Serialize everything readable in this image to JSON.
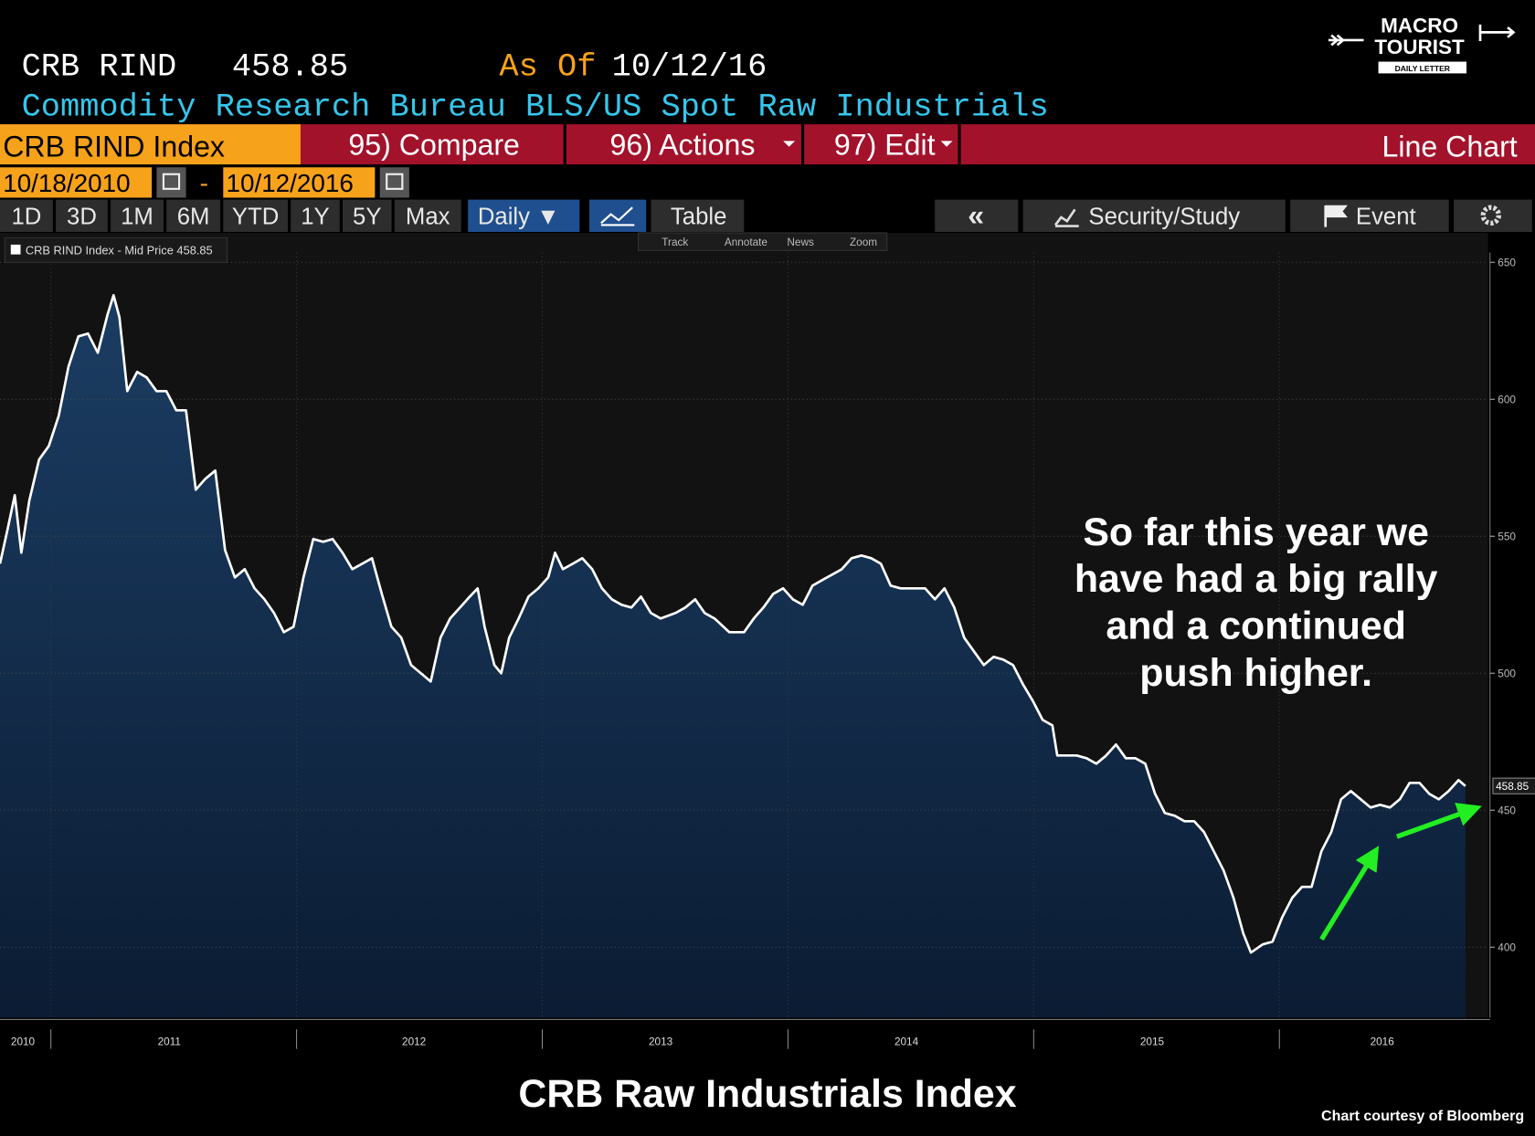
{
  "header": {
    "ticker": "CRB RIND",
    "price": "458.85",
    "as_of": "As Of",
    "date": "10/12/16",
    "description": "Commodity Research Bureau BLS/US Spot Raw Industrials"
  },
  "logo": {
    "line1": "MACRO",
    "line2": "TOURIST",
    "line3": "DAILY LETTER"
  },
  "menu": {
    "security": "CRB RIND Index",
    "compare": "95) Compare",
    "actions": "96) Actions",
    "edit": "97) Edit",
    "view": "Line Chart"
  },
  "range": {
    "start": "10/18/2010",
    "dash": "-",
    "end": "10/12/2016"
  },
  "periods": [
    "1D",
    "3D",
    "1M",
    "6M",
    "YTD",
    "1Y",
    "5Y",
    "Max"
  ],
  "toolbar": {
    "frequency": "Daily ▼",
    "table": "Table",
    "collapse": "«",
    "study": "Security/Study",
    "event": "Event"
  },
  "tools": [
    "Track",
    "Annotate",
    "News",
    "Zoom"
  ],
  "footer": {
    "title": "CRB Raw Industrials Index",
    "credit": "Chart courtesy of Bloomberg"
  },
  "chart_data": {
    "type": "area",
    "annotation": [
      "So far this year we",
      "have had a big rally",
      "and a continued",
      "push higher."
    ],
    "xlim": [
      2010.793,
      2016.849
    ],
    "ylim": [
      374.3,
      653.6
    ],
    "yticks": [
      400,
      450,
      500,
      550,
      600,
      650
    ],
    "xticks": [
      {
        "value": 2010.886,
        "label": "2010"
      },
      {
        "value": 2011.482,
        "label": "2011"
      },
      {
        "value": 2012.478,
        "label": "2012"
      },
      {
        "value": 2013.482,
        "label": "2013"
      },
      {
        "value": 2014.482,
        "label": "2014"
      },
      {
        "value": 2015.482,
        "label": "2015"
      },
      {
        "value": 2016.418,
        "label": "2016"
      }
    ],
    "xgrid": [
      2011,
      2012,
      2013,
      2014,
      2015,
      2016
    ],
    "grid": true,
    "series": [
      {
        "name": "CRB RIND Index - Mid Price 458.85",
        "color": "#ffffff",
        "x": [
          2010.793,
          2010.825,
          2010.853,
          2010.88,
          2010.912,
          2010.952,
          2010.992,
          2011.032,
          2011.072,
          2011.112,
          2011.151,
          2011.191,
          2011.231,
          2011.255,
          2011.279,
          2011.311,
          2011.351,
          2011.39,
          2011.43,
          2011.47,
          2011.51,
          2011.55,
          2011.59,
          2011.629,
          2011.669,
          2011.709,
          2011.749,
          2011.789,
          2011.829,
          2011.869,
          2011.908,
          2011.948,
          2011.988,
          2012.028,
          2012.068,
          2012.108,
          2012.147,
          2012.187,
          2012.227,
          2012.267,
          2012.307,
          2012.347,
          2012.386,
          2012.426,
          2012.466,
          2012.506,
          2012.546,
          2012.586,
          2012.625,
          2012.665,
          2012.705,
          2012.737,
          2012.765,
          2012.805,
          2012.833,
          2012.865,
          2012.904,
          2012.944,
          2012.984,
          2013.024,
          2013.052,
          2013.084,
          2013.124,
          2013.163,
          2013.203,
          2013.243,
          2013.283,
          2013.323,
          2013.363,
          2013.402,
          2013.442,
          2013.482,
          2013.542,
          2013.582,
          2013.622,
          2013.661,
          2013.701,
          2013.761,
          2013.821,
          2013.861,
          2013.9,
          2013.94,
          2013.98,
          2014.02,
          2014.06,
          2014.1,
          2014.139,
          2014.179,
          2014.219,
          2014.259,
          2014.299,
          2014.339,
          2014.378,
          2014.418,
          2014.458,
          2014.498,
          2014.558,
          2014.598,
          2014.637,
          2014.677,
          2014.717,
          2014.757,
          2014.797,
          2014.837,
          2014.876,
          2014.916,
          2014.956,
          2014.996,
          2015.036,
          2015.076,
          2015.096,
          2015.135,
          2015.175,
          2015.215,
          2015.255,
          2015.295,
          2015.335,
          2015.375,
          2015.414,
          2015.454,
          2015.494,
          2015.534,
          2015.574,
          2015.614,
          2015.653,
          2015.693,
          2015.733,
          2015.773,
          2015.813,
          2015.853,
          2015.884,
          2015.932,
          2015.972,
          2016.012,
          2016.052,
          2016.092,
          2016.131,
          2016.171,
          2016.211,
          2016.251,
          2016.291,
          2016.331,
          2016.371,
          2016.41,
          2016.45,
          2016.49,
          2016.53,
          2016.57,
          2016.61,
          2016.649,
          2016.689,
          2016.729,
          2016.757
        ],
        "values": [
          540,
          553,
          565,
          544,
          563,
          578,
          583,
          594,
          612,
          623,
          624,
          617,
          631,
          638,
          630,
          603,
          610,
          608,
          603,
          603,
          596,
          596,
          567,
          571,
          574,
          545,
          535,
          538,
          531,
          527,
          522,
          515,
          517,
          535,
          549,
          548,
          549,
          544,
          538,
          540,
          542,
          529,
          517,
          513,
          503,
          500,
          497,
          513,
          520,
          524,
          528,
          531,
          517,
          503,
          500,
          513,
          520,
          528,
          531,
          535,
          544,
          538,
          540,
          542,
          538,
          531,
          527,
          525,
          524,
          528,
          522,
          520,
          522,
          524,
          527,
          522,
          520,
          515,
          515,
          520,
          524,
          529,
          531,
          527,
          525,
          532,
          534,
          536,
          538,
          542,
          543,
          542,
          540,
          532,
          531,
          531,
          531,
          527,
          531,
          524,
          513,
          508,
          503,
          506,
          505,
          503,
          496,
          490,
          483,
          481,
          470,
          470,
          470,
          469,
          467,
          470,
          474,
          469,
          469,
          467,
          456,
          449,
          448,
          446,
          446,
          442,
          435,
          428,
          418,
          405,
          398,
          401,
          402,
          411,
          418,
          422,
          422,
          435,
          442,
          454,
          457,
          454,
          451,
          452,
          451,
          454,
          460,
          460,
          456,
          454,
          457,
          461,
          458.85
        ]
      }
    ]
  }
}
